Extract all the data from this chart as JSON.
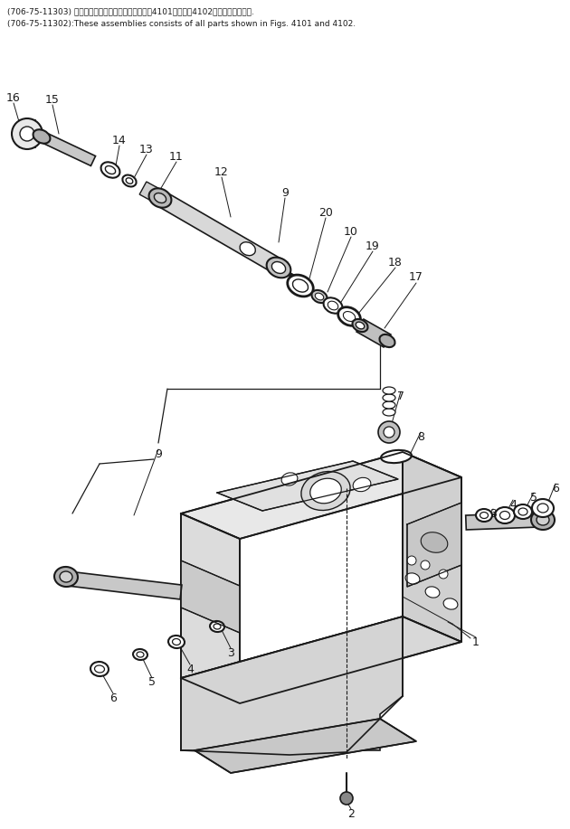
{
  "bg_color": "#ffffff",
  "line_color": "#1a1a1a",
  "text_color": "#1a1a1a",
  "header_line1": "(706-75-11303) これらのアセンブリの構成部品は笥4101および笥4102図までを含みます.",
  "header_line2": "(706-75-11302):These assemblies consists of all parts shown in Figs. 4101 and 4102.",
  "fig_width": 6.3,
  "fig_height": 9.17,
  "dpi": 100
}
